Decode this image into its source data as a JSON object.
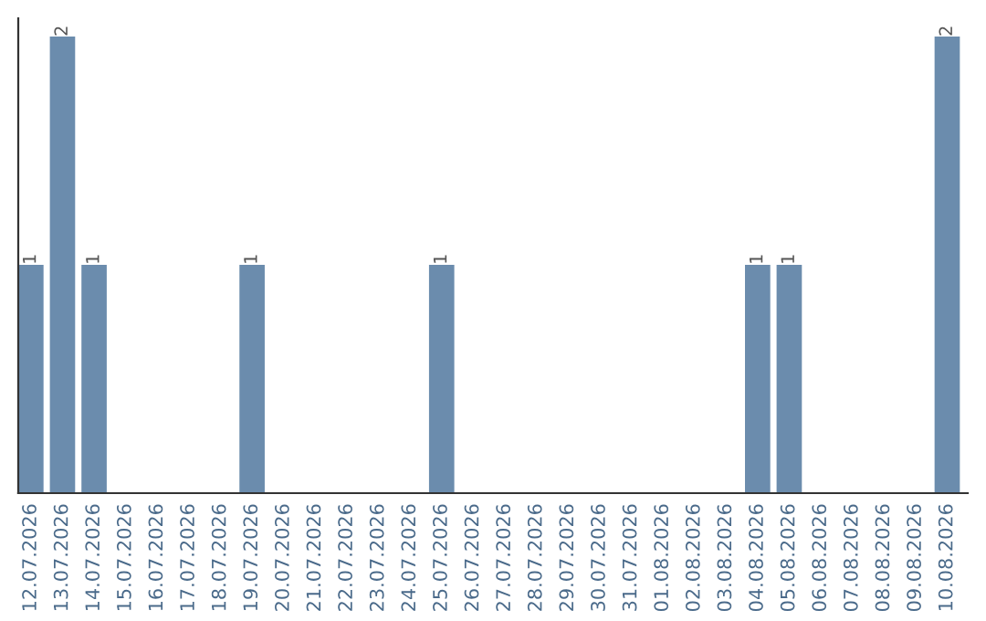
{
  "chart_data": {
    "type": "bar",
    "categories": [
      "12.07.2026",
      "13.07.2026",
      "14.07.2026",
      "15.07.2026",
      "16.07.2026",
      "17.07.2026",
      "18.07.2026",
      "19.07.2026",
      "20.07.2026",
      "21.07.2026",
      "22.07.2026",
      "23.07.2026",
      "24.07.2026",
      "25.07.2026",
      "26.07.2026",
      "27.07.2026",
      "28.07.2026",
      "29.07.2026",
      "30.07.2026",
      "31.07.2026",
      "01.08.2026",
      "02.08.2026",
      "03.08.2026",
      "04.08.2026",
      "05.08.2026",
      "06.08.2026",
      "07.08.2026",
      "08.08.2026",
      "09.08.2026",
      "10.08.2026"
    ],
    "values": [
      1,
      2,
      1,
      0,
      0,
      0,
      0,
      1,
      0,
      0,
      0,
      0,
      0,
      1,
      0,
      0,
      0,
      0,
      0,
      0,
      0,
      0,
      0,
      1,
      1,
      0,
      0,
      0,
      0,
      2
    ],
    "value_labels": [
      "1",
      "2",
      "1",
      null,
      null,
      null,
      null,
      "1",
      null,
      null,
      null,
      null,
      null,
      "1",
      null,
      null,
      null,
      null,
      null,
      null,
      null,
      null,
      null,
      "1",
      "1",
      null,
      null,
      null,
      null,
      "2"
    ],
    "color": "#6b8cad",
    "grid": false,
    "legend": false,
    "tick_labels": "x"
  }
}
